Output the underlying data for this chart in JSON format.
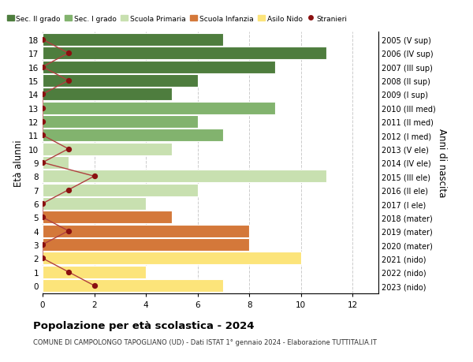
{
  "ages": [
    18,
    17,
    16,
    15,
    14,
    13,
    12,
    11,
    10,
    9,
    8,
    7,
    6,
    5,
    4,
    3,
    2,
    1,
    0
  ],
  "right_labels": [
    "2005 (V sup)",
    "2006 (IV sup)",
    "2007 (III sup)",
    "2008 (II sup)",
    "2009 (I sup)",
    "2010 (III med)",
    "2011 (II med)",
    "2012 (I med)",
    "2013 (V ele)",
    "2014 (IV ele)",
    "2015 (III ele)",
    "2016 (II ele)",
    "2017 (I ele)",
    "2018 (mater)",
    "2019 (mater)",
    "2020 (mater)",
    "2021 (nido)",
    "2022 (nido)",
    "2023 (nido)"
  ],
  "bar_values": [
    7,
    11,
    9,
    6,
    5,
    9,
    6,
    7,
    5,
    1,
    11,
    6,
    4,
    5,
    8,
    8,
    10,
    4,
    7
  ],
  "stranieri": [
    0,
    1,
    0,
    1,
    0,
    0,
    0,
    0,
    1,
    0,
    2,
    1,
    0,
    0,
    1,
    0,
    0,
    1,
    2
  ],
  "categories": {
    "Sec. II grado": {
      "ages": [
        14,
        15,
        16,
        17,
        18
      ],
      "color": "#4e7d3e"
    },
    "Sec. I grado": {
      "ages": [
        11,
        12,
        13
      ],
      "color": "#82b36e"
    },
    "Scuola Primaria": {
      "ages": [
        6,
        7,
        8,
        9,
        10
      ],
      "color": "#c8e0b0"
    },
    "Scuola Infanzia": {
      "ages": [
        3,
        4,
        5
      ],
      "color": "#d4783a"
    },
    "Asilo Nido": {
      "ages": [
        0,
        1,
        2
      ],
      "color": "#fce47a"
    }
  },
  "stranieri_color": "#8b1010",
  "stranieri_line_color": "#b04040",
  "title": "Popolazione per età scolastica - 2024",
  "subtitle": "COMUNE DI CAMPOLONGO TAPOGLIANO (UD) - Dati ISTAT 1° gennaio 2024 - Elaborazione TUTTITALIA.IT",
  "ylabel_left": "Età alunni",
  "ylabel_right": "Anni di nascita",
  "xlim": [
    0,
    13
  ],
  "xticks": [
    0,
    2,
    4,
    6,
    8,
    10,
    12
  ],
  "bg_color": "#ffffff",
  "grid_color": "#cccccc",
  "bar_height": 0.92,
  "legend_items": [
    "Sec. II grado",
    "Sec. I grado",
    "Scuola Primaria",
    "Scuola Infanzia",
    "Asilo Nido",
    "Stranieri"
  ],
  "legend_colors": [
    "#4e7d3e",
    "#82b36e",
    "#c8e0b0",
    "#d4783a",
    "#fce47a",
    "#8b1010"
  ]
}
